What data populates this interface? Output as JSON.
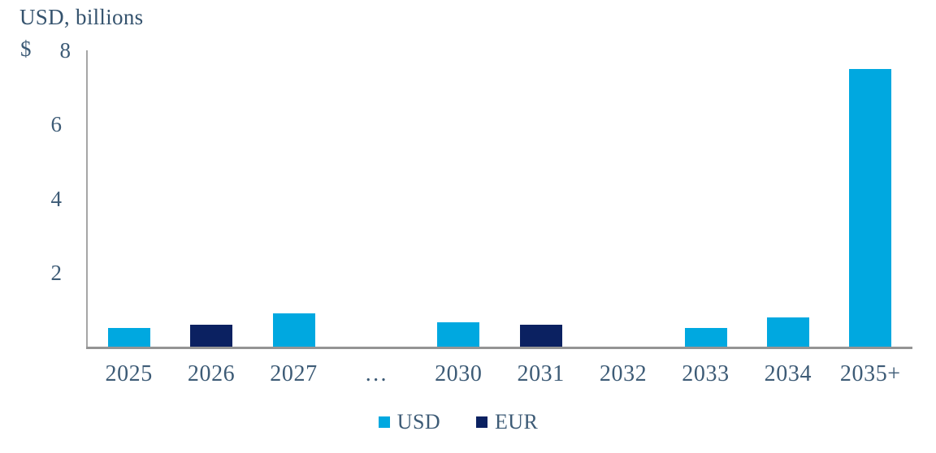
{
  "chart_data": {
    "type": "bar",
    "title": "USD, billions",
    "currency_prefix": "$",
    "categories": [
      "2025",
      "2026",
      "2027",
      "…",
      "2030",
      "2031",
      "2032",
      "2033",
      "2034",
      "2035+"
    ],
    "series": [
      {
        "name": "USD",
        "color": "#00A8E0",
        "values": [
          0.5,
          null,
          0.9,
          null,
          0.65,
          null,
          null,
          0.5,
          0.8,
          7.5
        ]
      },
      {
        "name": "EUR",
        "color": "#0B2161",
        "values": [
          null,
          0.6,
          null,
          null,
          null,
          0.6,
          null,
          null,
          null,
          null
        ]
      }
    ],
    "ylabel": "USD, billions",
    "ylim": [
      0,
      8
    ],
    "yticks": [
      2,
      4,
      6,
      8
    ],
    "grid": false,
    "legend_position": "bottom"
  },
  "legend": {
    "items": [
      {
        "label": "USD",
        "color": "#00A8E0"
      },
      {
        "label": "EUR",
        "color": "#0B2161"
      }
    ]
  },
  "colors": {
    "usd_bar": "#00A8E0",
    "eur_bar": "#0B2161",
    "text": "#3D5B76",
    "title_text": "#35536E",
    "y_axis_line": "#A6A6A6",
    "x_axis_line": "#949494",
    "background": "#FFFFFF"
  }
}
